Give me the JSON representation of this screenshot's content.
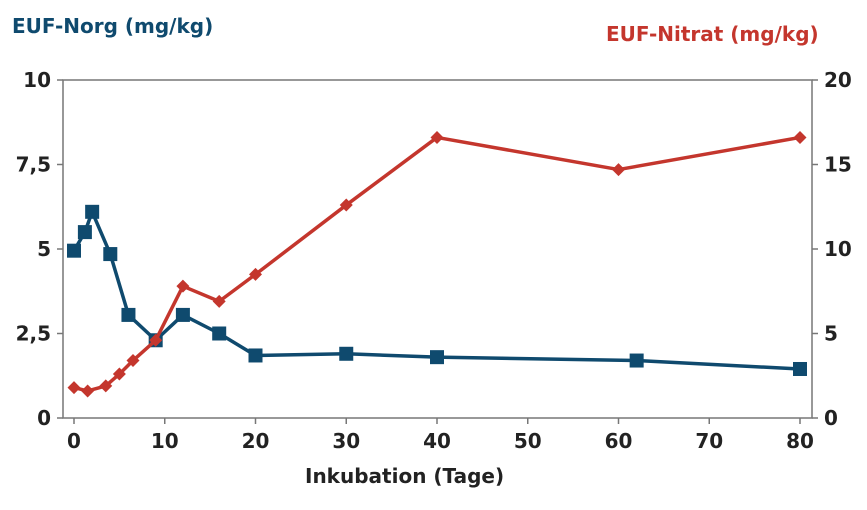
{
  "chart_data": {
    "type": "line",
    "xlabel": "Inkubation (Tage)",
    "ylabel_left": "EUF-Norg (mg/kg)",
    "ylabel_right": "EUF-Nitrat (mg/kg)",
    "xlim": [
      0,
      80
    ],
    "ylim_left": [
      0,
      10
    ],
    "ylim_right": [
      0,
      20
    ],
    "x_ticks": [
      "0",
      "10",
      "20",
      "30",
      "40",
      "50",
      "60",
      "70",
      "80"
    ],
    "y_left_ticks": [
      "0",
      "2,5",
      "5",
      "7,5",
      "10"
    ],
    "y_right_ticks": [
      "0",
      "5",
      "10",
      "15",
      "20"
    ],
    "grid": false,
    "series": [
      {
        "name": "EUF-Norg (mg/kg)",
        "axis": "left",
        "color": "#0f4a6e",
        "marker": "square",
        "x": [
          0,
          1.2,
          2,
          4,
          6,
          9,
          12,
          16,
          20,
          30,
          40,
          62,
          80
        ],
        "y": [
          4.95,
          5.5,
          6.1,
          4.85,
          3.05,
          2.3,
          3.05,
          2.5,
          1.85,
          1.9,
          1.8,
          1.7,
          1.45
        ]
      },
      {
        "name": "EUF-Nitrat (mg/kg)",
        "axis": "right",
        "color": "#c4362d",
        "marker": "diamond",
        "x": [
          0,
          1.5,
          3.5,
          5,
          6.5,
          9,
          12,
          16,
          20,
          30,
          40,
          60,
          80
        ],
        "y": [
          1.8,
          1.6,
          1.9,
          2.6,
          3.4,
          4.6,
          7.8,
          6.9,
          8.5,
          12.6,
          16.6,
          14.7,
          16.6
        ]
      }
    ]
  }
}
